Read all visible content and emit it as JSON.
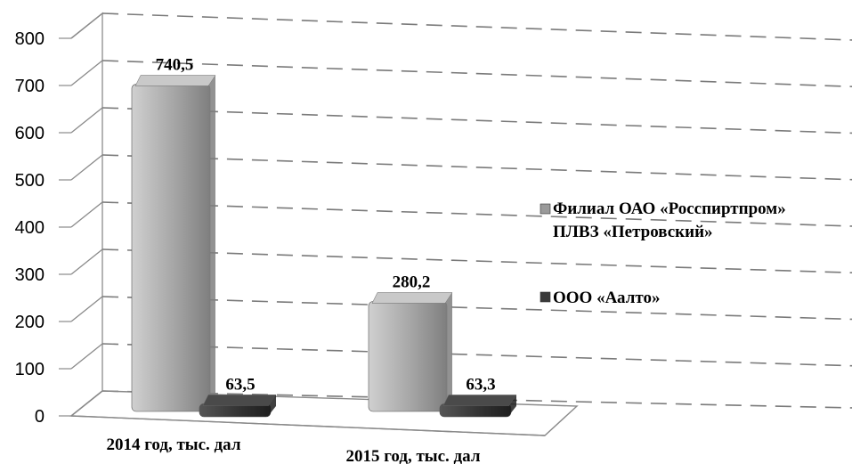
{
  "chart_data": {
    "type": "bar",
    "categories": [
      "2014 год, тыс. дал",
      "2015 год, тыс. дал"
    ],
    "series": [
      {
        "name": "Филиал ОАО «Росспиртпром» ПЛВЗ «Петровский»",
        "values": [
          740.5,
          280.2
        ],
        "labels": [
          "740,5",
          "280,2"
        ],
        "color": "#9a9a9a"
      },
      {
        "name": "ООО «Аалто»",
        "values": [
          63.5,
          63.3
        ],
        "labels": [
          "63,5",
          "63,3"
        ],
        "color": "#3a3a3a"
      }
    ],
    "legend_lines": [
      [
        "Филиал ОАО «Росспиртпром»",
        "ПЛВЗ «Петровский»"
      ],
      [
        "ООО «Аалто»"
      ]
    ],
    "yticks": [
      "0",
      "100",
      "200",
      "300",
      "400",
      "500",
      "600",
      "700",
      "800"
    ],
    "ylim": [
      0,
      800
    ],
    "grid": true,
    "legend_position": "right",
    "style": "3d"
  }
}
